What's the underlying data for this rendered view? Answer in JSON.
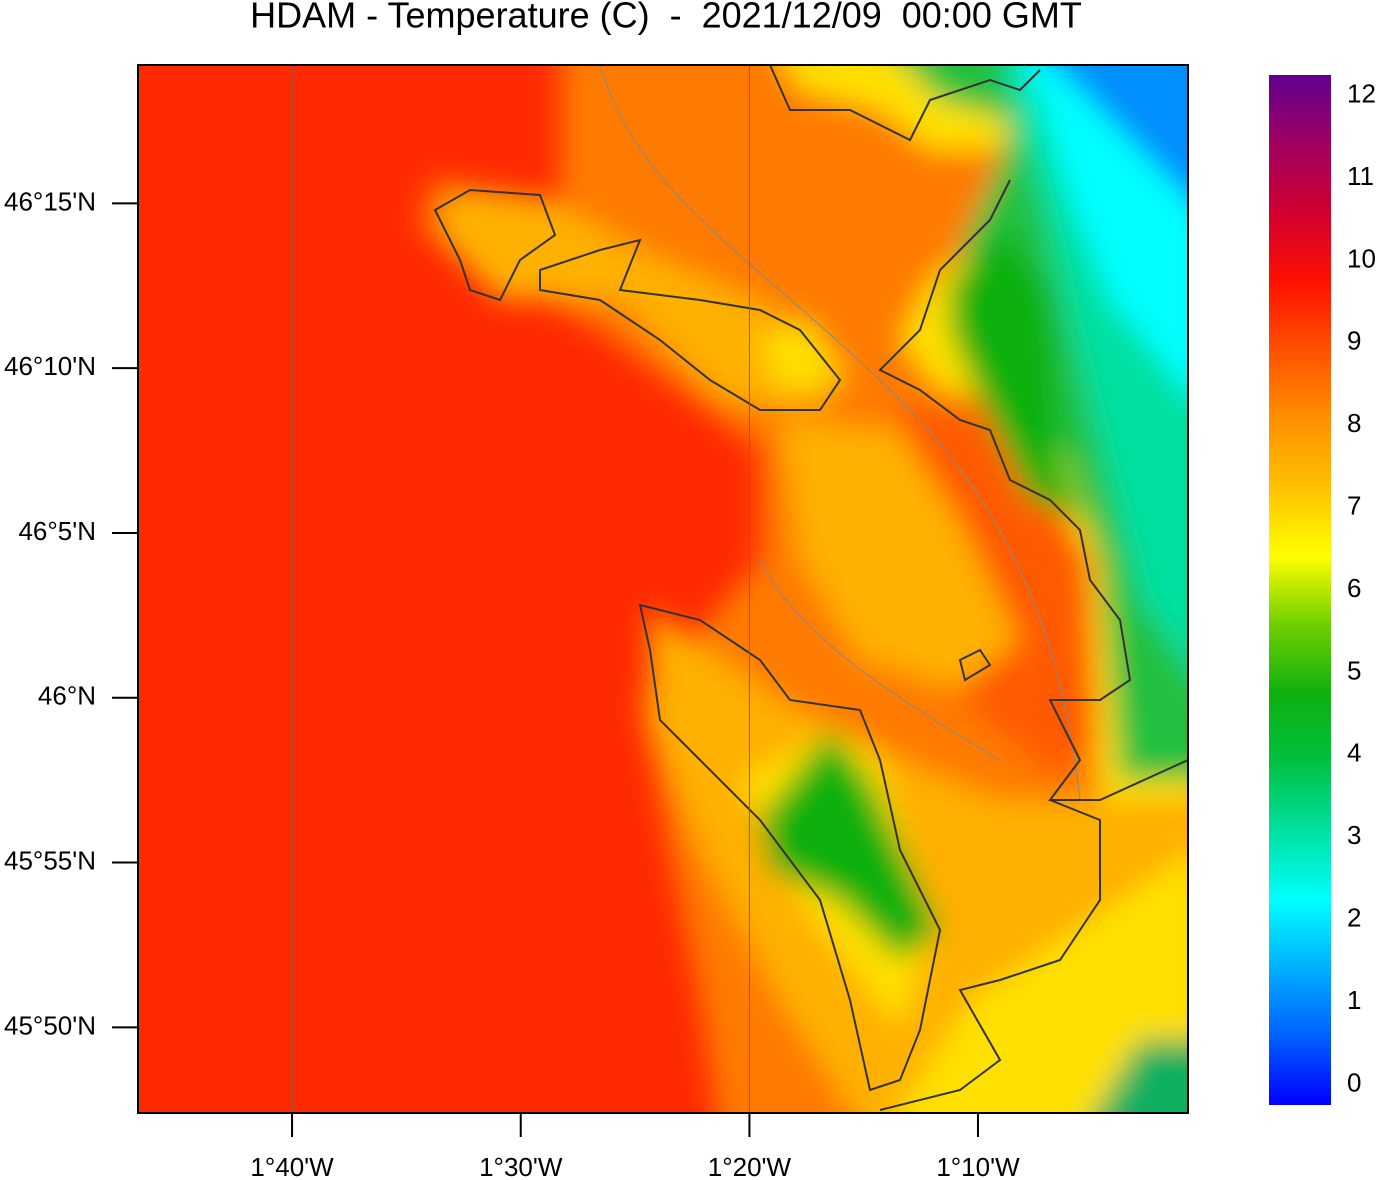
{
  "title": "HDAM - Temperature (C)  -  2021/12/09  00:00 GMT",
  "map": {
    "xlim": [
      -1.779,
      -1.0136
    ],
    "ylim": [
      45.79,
      46.32
    ],
    "xticks": [
      {
        "value": -1.6667,
        "label": "1°40'W"
      },
      {
        "value": -1.5,
        "label": "1°30'W"
      },
      {
        "value": -1.3333,
        "label": "1°20'W"
      },
      {
        "value": -1.1667,
        "label": "1°10'W"
      }
    ],
    "yticks": [
      {
        "value": 46.25,
        "label": "46°15'N"
      },
      {
        "value": 46.1667,
        "label": "46°10'N"
      },
      {
        "value": 46.0833,
        "label": "46°5'N"
      },
      {
        "value": 46.0,
        "label": "46°N"
      },
      {
        "value": 45.9167,
        "label": "45°55'N"
      },
      {
        "value": 45.8333,
        "label": "45°50'N"
      }
    ],
    "meridians": [
      -1.6667,
      -1.3333
    ]
  },
  "colorbar": {
    "clim": [
      -0.25,
      12.25
    ],
    "ticks": [
      0,
      1,
      2,
      3,
      4,
      5,
      6,
      7,
      8,
      9,
      10,
      11,
      12
    ],
    "colors": [
      "#0000ff",
      "#0060ff",
      "#00b0ff",
      "#00ffff",
      "#00e0a0",
      "#00c040",
      "#10b010",
      "#70d000",
      "#ffff00",
      "#ffc000",
      "#ff9000",
      "#ff5000",
      "#ff1000",
      "#d00030",
      "#a00060",
      "#600090"
    ]
  }
}
